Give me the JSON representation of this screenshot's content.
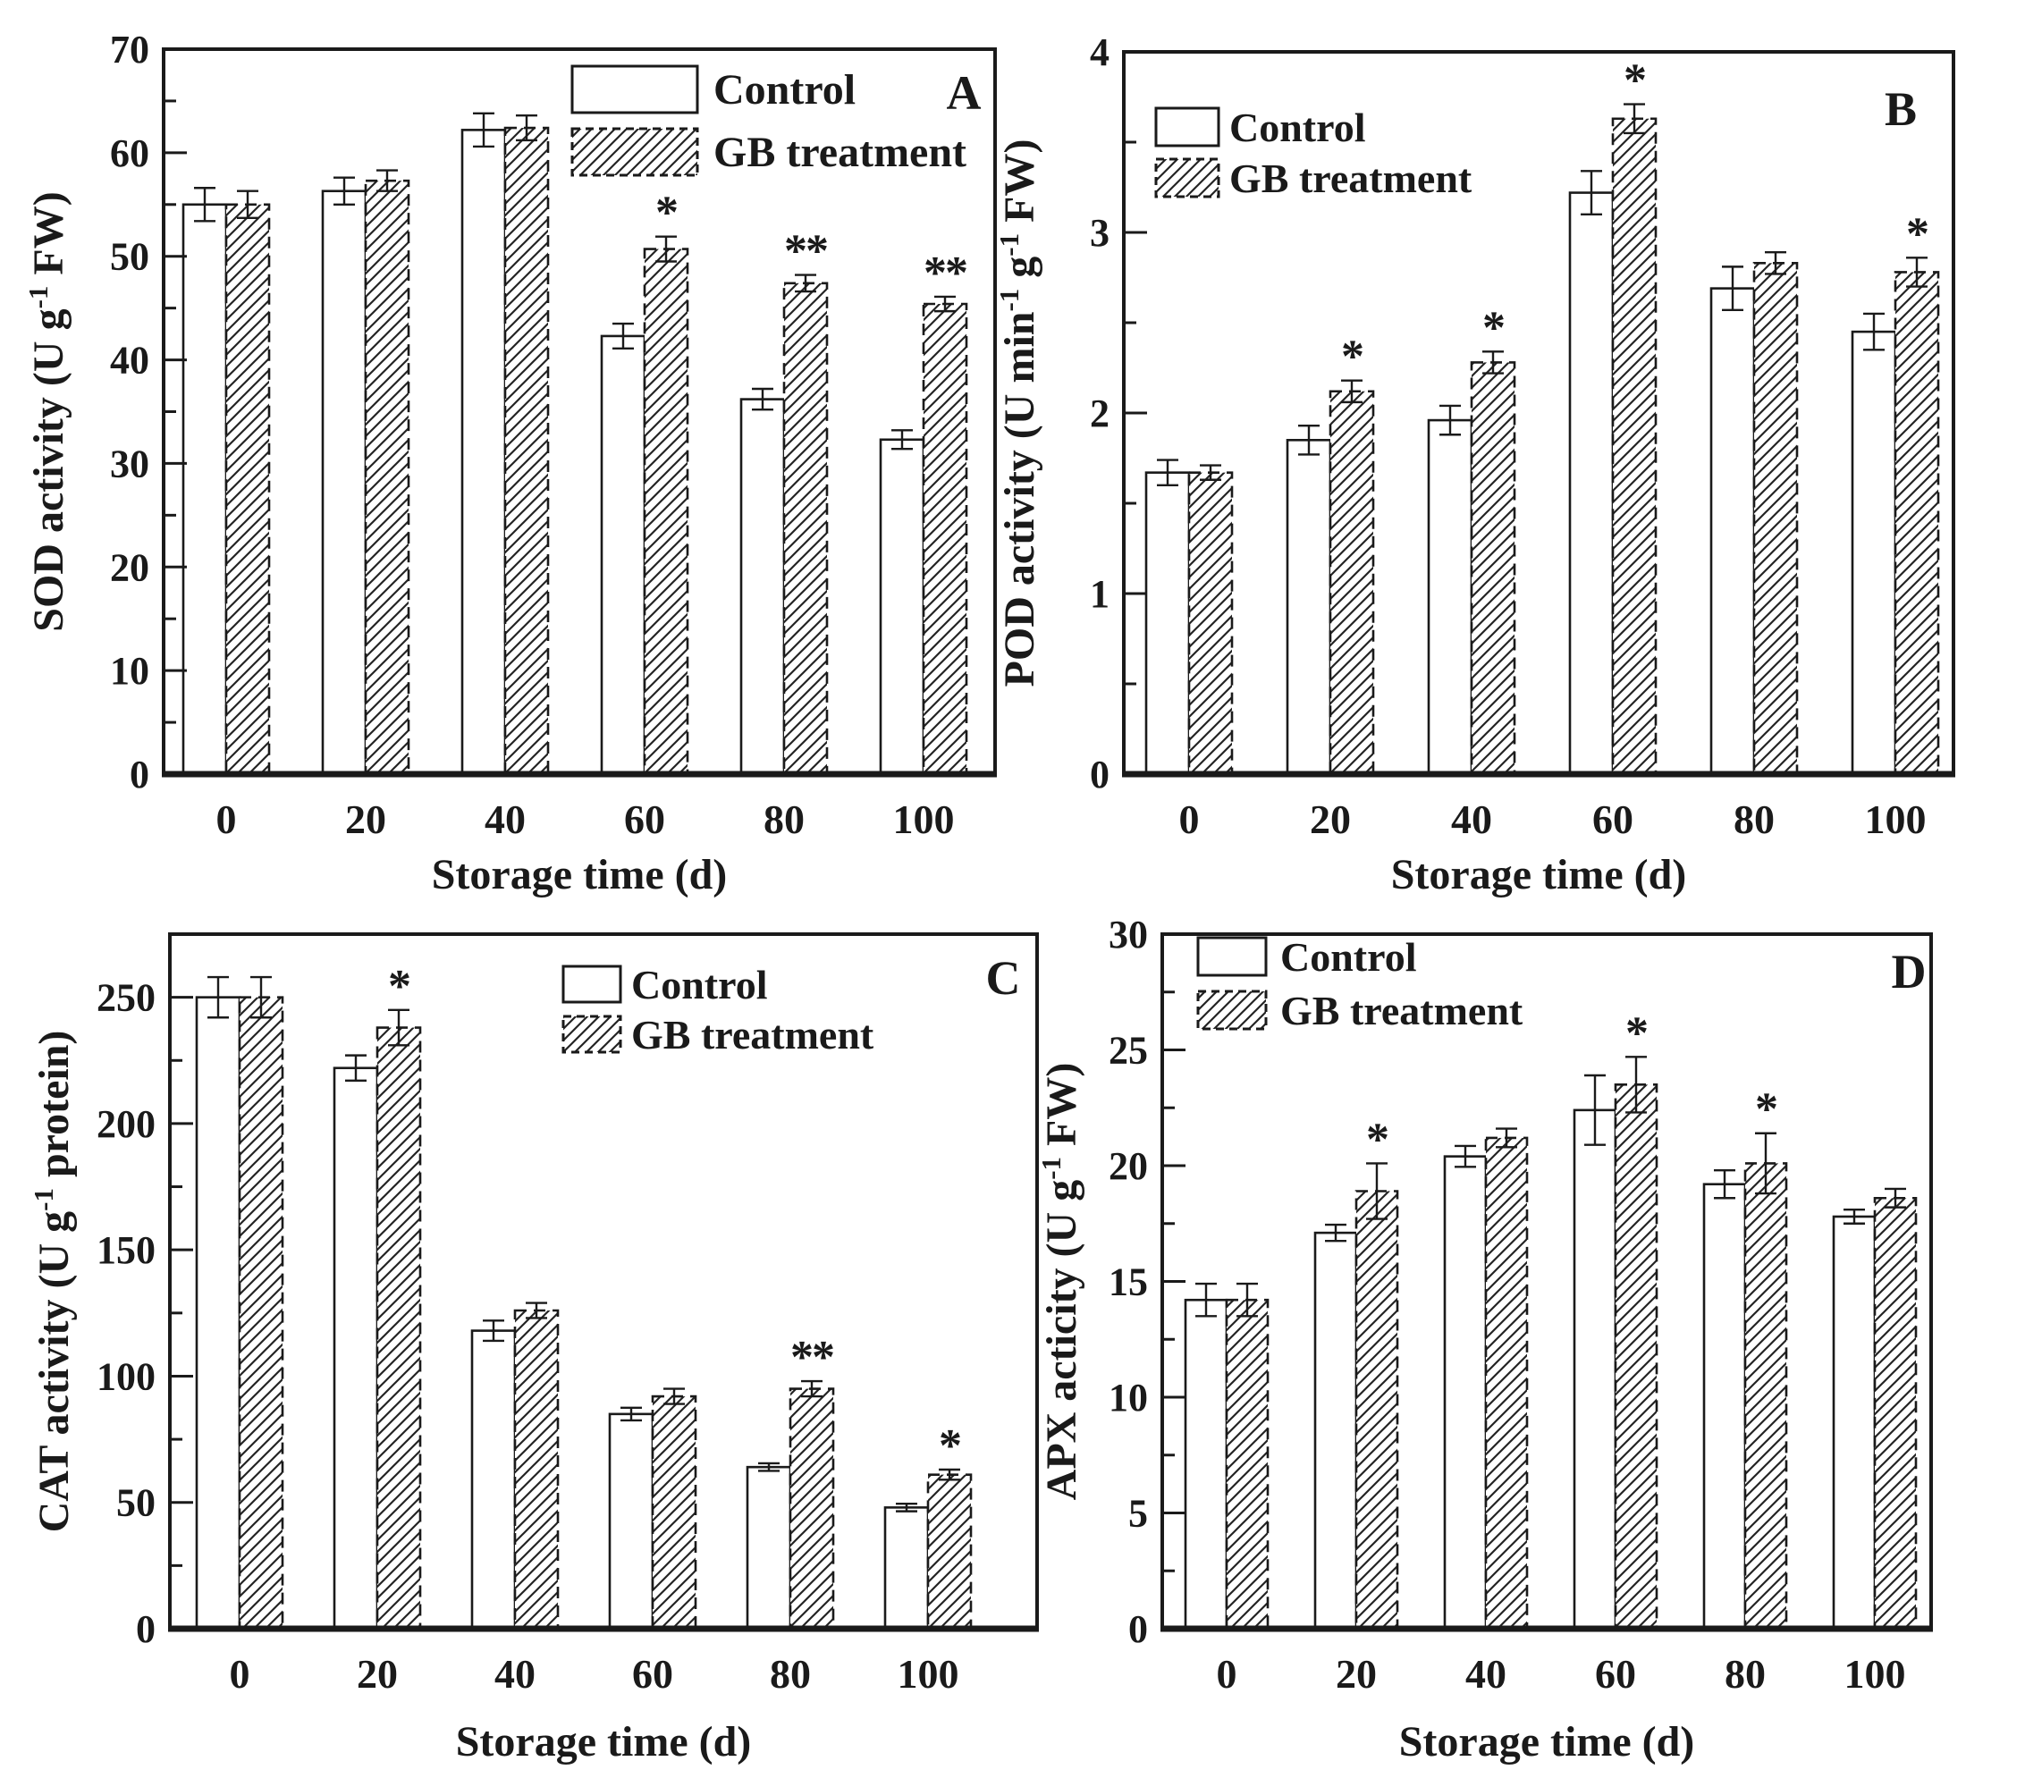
{
  "figure": {
    "xlabel": "Storage time (d)",
    "categories": [
      "0",
      "20",
      "40",
      "60",
      "80",
      "100"
    ],
    "legend": [
      "Control",
      "GB treatment"
    ],
    "colors": {
      "ink": "#1a1a1a",
      "paper": "#ffffff"
    },
    "significance_symbols": [
      "*",
      "**"
    ]
  },
  "chart_data": [
    {
      "type": "bar",
      "panel": "A",
      "ylabel": "SOD activity (U g⁻¹ FW)",
      "ylabel_segments": [
        {
          "t": "SOD activity (U g"
        },
        {
          "t": "-1",
          "sup": true
        },
        {
          "t": " FW)"
        }
      ],
      "xlabel": "Storage time (d)",
      "categories": [
        "0",
        "20",
        "40",
        "60",
        "80",
        "100"
      ],
      "ylim": [
        0,
        70
      ],
      "ytick_major": 10,
      "ytick_minor": 5,
      "ytick_label_max": 70,
      "grid": false,
      "legend_position": "top-right",
      "series": [
        {
          "name": "Control",
          "values": [
            55.0,
            56.3,
            62.2,
            42.3,
            36.2,
            32.3
          ],
          "errors": [
            1.6,
            1.3,
            1.6,
            1.2,
            1.0,
            0.9
          ]
        },
        {
          "name": "GB treatment",
          "values": [
            55.0,
            57.3,
            62.4,
            50.7,
            47.4,
            45.4
          ],
          "errors": [
            1.3,
            1.0,
            1.2,
            1.2,
            0.8,
            0.7
          ]
        }
      ],
      "significance_above_gb": [
        "",
        "",
        "",
        "*",
        "**",
        "**"
      ]
    },
    {
      "type": "bar",
      "panel": "B",
      "ylabel": "POD activity (U min⁻¹ g⁻¹ FW)",
      "ylabel_segments": [
        {
          "t": "POD activity (U min"
        },
        {
          "t": "-1",
          "sup": true
        },
        {
          "t": " g"
        },
        {
          "t": "-1",
          "sup": true
        },
        {
          "t": " FW)"
        }
      ],
      "xlabel": "Storage time (d)",
      "categories": [
        "0",
        "20",
        "40",
        "60",
        "80",
        "100"
      ],
      "ylim": [
        0,
        4
      ],
      "ytick_major": 1,
      "ytick_minor": 0.5,
      "ytick_label_max": 4,
      "grid": false,
      "legend_position": "top-left",
      "series": [
        {
          "name": "Control",
          "values": [
            1.67,
            1.85,
            1.96,
            3.22,
            2.69,
            2.45
          ],
          "errors": [
            0.07,
            0.08,
            0.08,
            0.12,
            0.12,
            0.1
          ]
        },
        {
          "name": "GB treatment",
          "values": [
            1.67,
            2.12,
            2.28,
            3.63,
            2.83,
            2.78
          ],
          "errors": [
            0.04,
            0.06,
            0.06,
            0.08,
            0.06,
            0.08
          ]
        }
      ],
      "significance_above_gb": [
        "",
        "*",
        "*",
        "*",
        "",
        "*"
      ]
    },
    {
      "type": "bar",
      "panel": "C",
      "ylabel": "CAT activity (U g⁻¹ protein)",
      "ylabel_segments": [
        {
          "t": "CAT activity (U g"
        },
        {
          "t": "-1",
          "sup": true
        },
        {
          "t": " protein)"
        }
      ],
      "xlabel": "Storage time (d)",
      "categories": [
        "0",
        "20",
        "40",
        "60",
        "80",
        "100"
      ],
      "ylim": [
        0,
        275
      ],
      "ytick_major": 50,
      "ytick_minor": 25,
      "ytick_label_max": 250,
      "grid": false,
      "legend_position": "top-right",
      "series": [
        {
          "name": "Control",
          "values": [
            250,
            222,
            118,
            85,
            64,
            48
          ],
          "errors": [
            8,
            5,
            4,
            2.5,
            1.5,
            1.5
          ]
        },
        {
          "name": "GB treatment",
          "values": [
            250,
            238,
            126,
            92,
            95,
            61
          ],
          "errors": [
            8,
            7,
            3,
            3,
            3,
            2
          ]
        }
      ],
      "significance_above_gb": [
        "",
        "*",
        "",
        "",
        "**",
        "*"
      ]
    },
    {
      "type": "bar",
      "panel": "D",
      "ylabel": "APX acticity (U g⁻¹ FW)",
      "ylabel_segments": [
        {
          "t": "APX acticity (U g"
        },
        {
          "t": "-1",
          "sup": true
        },
        {
          "t": " FW)"
        }
      ],
      "xlabel": "Storage time (d)",
      "categories": [
        "0",
        "20",
        "40",
        "60",
        "80",
        "100"
      ],
      "ylim": [
        0,
        30
      ],
      "ytick_major": 5,
      "ytick_minor": 2.5,
      "ytick_label_max": 30,
      "grid": false,
      "legend_position": "top-left",
      "series": [
        {
          "name": "Control",
          "values": [
            14.2,
            17.1,
            20.4,
            22.4,
            19.2,
            17.8
          ],
          "errors": [
            0.7,
            0.35,
            0.45,
            1.5,
            0.6,
            0.3
          ]
        },
        {
          "name": "GB treatment",
          "values": [
            14.2,
            18.9,
            21.2,
            23.5,
            20.1,
            18.6
          ],
          "errors": [
            0.7,
            1.2,
            0.4,
            1.2,
            1.3,
            0.4
          ]
        }
      ],
      "significance_above_gb": [
        "",
        "*",
        "",
        "*",
        "*",
        ""
      ]
    }
  ]
}
